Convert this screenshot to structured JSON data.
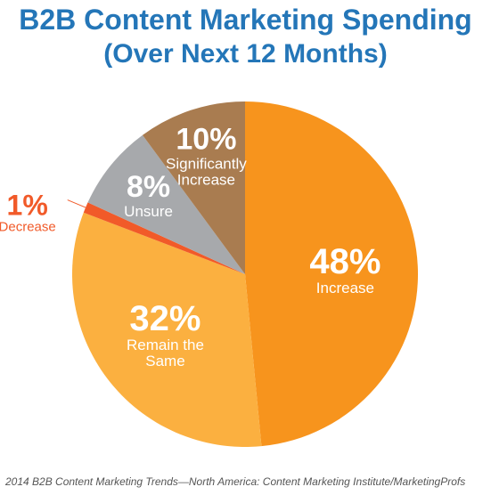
{
  "chart_data": {
    "type": "pie",
    "title": "B2B Content Marketing Spending",
    "subtitle": "(Over Next 12 Months)",
    "categories": [
      "Increase",
      "Remain the Same",
      "Decrease",
      "Unsure",
      "Significantly Increase"
    ],
    "values": [
      48,
      32,
      1,
      8,
      10
    ],
    "value_labels": [
      "48%",
      "32%",
      "1%",
      "8%",
      "10%"
    ],
    "colors": [
      "#f7941d",
      "#fbb040",
      "#f15a29",
      "#a7a9ac",
      "#a97c50"
    ],
    "source": "2014 B2B Content Marketing Trends—North America: Content Marketing Institute/MarketingProfs"
  }
}
